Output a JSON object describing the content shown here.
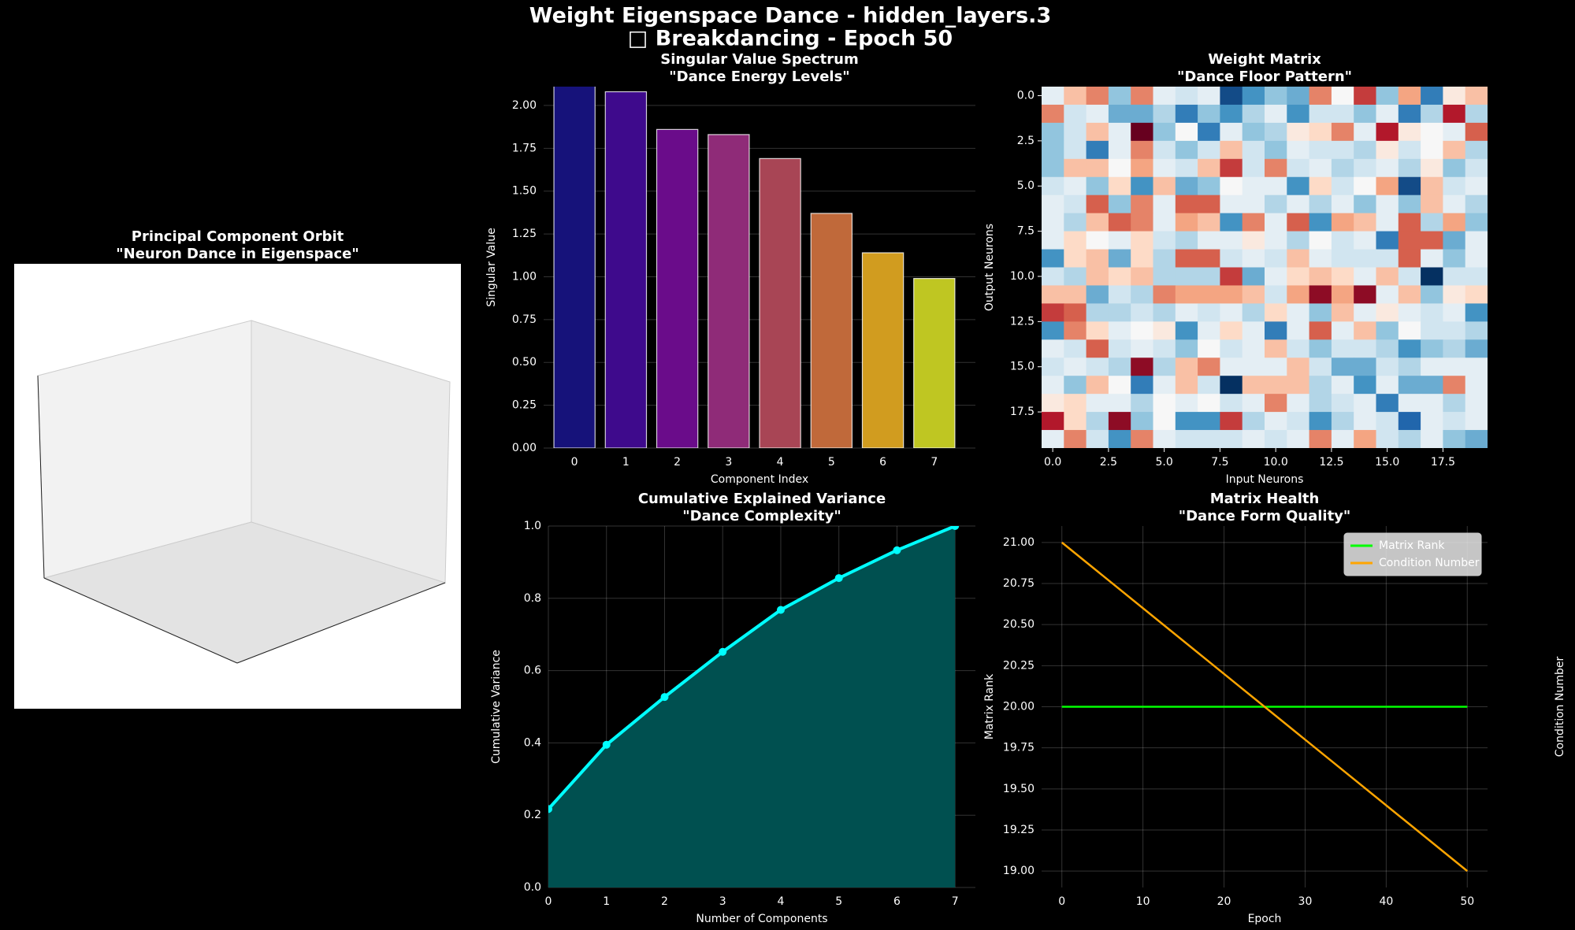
{
  "title": "Weight Eigenspace Dance - hidden_layers.3",
  "subtitle": "□ Breakdancing - Epoch 50",
  "chart_data": [
    {
      "type": "scatter3d",
      "title": "Principal Component Orbit",
      "subtitle": "\"Neuron Dance in Eigenspace\""
    },
    {
      "type": "bar",
      "title": "Singular Value Spectrum",
      "subtitle": "\"Dance Energy Levels\"",
      "xlabel": "Component Index",
      "ylabel": "Singular Value",
      "categories": [
        "0",
        "1",
        "2",
        "3",
        "4",
        "5",
        "6",
        "7"
      ],
      "values": [
        2.2,
        2.08,
        1.86,
        1.83,
        1.69,
        1.37,
        1.14,
        0.99
      ],
      "colors": [
        "#16127a",
        "#3e0a8c",
        "#6a0c8a",
        "#8f2b78",
        "#a84555",
        "#c0693a",
        "#d19c1f",
        "#bfc622"
      ],
      "xlim": [
        -0.6,
        7.8
      ],
      "ylim": [
        0,
        2.11
      ],
      "yticks": [
        {
          "value": 0,
          "label": "0.00"
        },
        {
          "value": 0.25,
          "label": "0.25"
        },
        {
          "value": 0.5,
          "label": "0.50"
        },
        {
          "value": 0.75,
          "label": "0.75"
        },
        {
          "value": 1,
          "label": "1.00"
        },
        {
          "value": 1.25,
          "label": "1.25"
        },
        {
          "value": 1.5,
          "label": "1.50"
        },
        {
          "value": 1.75,
          "label": "1.75"
        },
        {
          "value": 2,
          "label": "2.00"
        }
      ],
      "grid": true
    },
    {
      "type": "heatmap",
      "title": "Weight Matrix",
      "subtitle": "\"Dance Floor Pattern\"",
      "xlabel": "Input Neurons",
      "ylabel": "Output Neurons",
      "xlim": [
        -0.5,
        19.5
      ],
      "ylim": [
        19.5,
        -0.5
      ],
      "xticks": [
        {
          "value": 0,
          "label": "0.0"
        },
        {
          "value": 2.5,
          "label": "2.5"
        },
        {
          "value": 5,
          "label": "5.0"
        },
        {
          "value": 7.5,
          "label": "7.5"
        },
        {
          "value": 10,
          "label": "10.0"
        },
        {
          "value": 12.5,
          "label": "12.5"
        },
        {
          "value": 15,
          "label": "15.0"
        },
        {
          "value": 17.5,
          "label": "17.5"
        }
      ],
      "yticks": [
        {
          "value": 0,
          "label": "0.0"
        },
        {
          "value": 2.5,
          "label": "2.5"
        },
        {
          "value": 5,
          "label": "5.0"
        },
        {
          "value": 7.5,
          "label": "7.5"
        },
        {
          "value": 10,
          "label": "10.0"
        },
        {
          "value": 12.5,
          "label": "12.5"
        },
        {
          "value": 15,
          "label": "15.0"
        },
        {
          "value": 17.5,
          "label": "17.5"
        }
      ],
      "z": [
        [
          0.1,
          -0.3,
          -0.5,
          0.4,
          -0.5,
          0.1,
          0.2,
          0.1,
          0.9,
          0.6,
          0.4,
          0.5,
          -0.5,
          0.0,
          -0.7,
          0.4,
          -0.4,
          0.7,
          -0.1,
          -0.3
        ],
        [
          -0.5,
          0.2,
          0.1,
          0.5,
          0.5,
          0.3,
          0.7,
          0.4,
          0.6,
          0.3,
          0.1,
          0.6,
          0.2,
          0.2,
          0.4,
          0.1,
          0.7,
          0.3,
          -0.8,
          0.3
        ],
        [
          0.4,
          0.2,
          -0.3,
          0.1,
          -1.0,
          0.4,
          0.0,
          0.7,
          0.1,
          0.4,
          0.3,
          -0.1,
          -0.2,
          -0.5,
          0.1,
          -0.8,
          -0.1,
          0.0,
          0.1,
          -0.6
        ],
        [
          0.4,
          0.2,
          0.7,
          0.1,
          -0.5,
          0.2,
          0.4,
          0.2,
          -0.3,
          0.2,
          0.4,
          0.1,
          0.2,
          0.2,
          0.3,
          -0.1,
          0.2,
          0.0,
          -0.3,
          0.3
        ],
        [
          0.4,
          -0.3,
          -0.3,
          0.0,
          -0.4,
          0.1,
          0.2,
          -0.3,
          -0.7,
          0.2,
          -0.5,
          0.2,
          0.1,
          0.3,
          0.2,
          0.1,
          0.3,
          -0.1,
          0.4,
          0.2
        ],
        [
          0.2,
          0.1,
          0.4,
          -0.2,
          0.6,
          -0.3,
          0.5,
          0.4,
          0.0,
          0.1,
          0.1,
          0.6,
          -0.2,
          0.2,
          0.0,
          -0.4,
          0.9,
          -0.3,
          0.2,
          0.1
        ],
        [
          0.1,
          0.2,
          -0.6,
          0.4,
          -0.5,
          0.1,
          -0.6,
          -0.6,
          0.1,
          0.1,
          0.3,
          0.1,
          0.3,
          0.1,
          0.4,
          0.1,
          0.4,
          -0.3,
          0.1,
          0.3
        ],
        [
          0.1,
          0.3,
          -0.3,
          -0.6,
          -0.5,
          0.1,
          -0.4,
          -0.3,
          0.6,
          -0.5,
          0.1,
          -0.6,
          0.6,
          -0.4,
          -0.3,
          0.1,
          -0.6,
          0.3,
          -0.4,
          0.4
        ],
        [
          0.1,
          -0.2,
          0.0,
          0.1,
          -0.2,
          0.2,
          0.3,
          0.1,
          0.1,
          -0.1,
          0.1,
          0.3,
          0.0,
          0.2,
          0.1,
          0.7,
          -0.6,
          -0.6,
          0.5,
          0.1
        ],
        [
          0.6,
          -0.2,
          -0.3,
          0.5,
          -0.2,
          0.3,
          -0.6,
          -0.6,
          0.2,
          0.1,
          0.2,
          -0.3,
          0.1,
          0.2,
          0.2,
          0.2,
          -0.6,
          0.1,
          0.4,
          0.1
        ],
        [
          0.2,
          0.3,
          -0.3,
          -0.2,
          -0.3,
          0.3,
          0.3,
          0.3,
          -0.7,
          0.5,
          0.1,
          -0.2,
          -0.3,
          -0.2,
          0.1,
          -0.3,
          0.2,
          1.0,
          0.2,
          0.2
        ],
        [
          -0.3,
          -0.3,
          0.5,
          0.2,
          0.3,
          -0.5,
          -0.4,
          -0.4,
          -0.4,
          -0.3,
          0.2,
          -0.4,
          -0.9,
          -0.4,
          -0.9,
          0.1,
          -0.3,
          0.4,
          -0.1,
          -0.2
        ],
        [
          -0.7,
          -0.6,
          0.3,
          0.3,
          0.2,
          0.3,
          0.1,
          0.2,
          0.1,
          0.3,
          -0.2,
          0.1,
          0.4,
          -0.3,
          0.1,
          -0.1,
          0.1,
          0.2,
          0.1,
          0.6
        ],
        [
          0.6,
          -0.5,
          -0.2,
          0.1,
          0.0,
          -0.1,
          0.6,
          0.1,
          -0.2,
          0.1,
          0.7,
          0.1,
          -0.6,
          0.1,
          -0.3,
          0.4,
          0.0,
          0.2,
          0.2,
          0.3
        ],
        [
          0.1,
          0.2,
          -0.6,
          0.2,
          0.1,
          0.2,
          0.4,
          0.0,
          0.2,
          0.1,
          -0.3,
          0.2,
          0.4,
          0.2,
          0.2,
          0.3,
          0.6,
          0.4,
          0.3,
          0.5
        ],
        [
          0.2,
          0.1,
          0.2,
          0.3,
          -0.9,
          0.3,
          -0.3,
          -0.5,
          0.1,
          0.1,
          0.1,
          -0.3,
          0.2,
          0.5,
          0.5,
          0.2,
          0.3,
          0.1,
          0.1,
          0.1
        ],
        [
          0.1,
          0.4,
          -0.3,
          0.0,
          0.7,
          0.1,
          -0.3,
          0.2,
          1.0,
          -0.3,
          -0.3,
          -0.3,
          0.3,
          0.1,
          0.6,
          0.1,
          0.5,
          0.5,
          -0.5,
          0.1
        ],
        [
          -0.1,
          -0.2,
          0.1,
          0.1,
          0.3,
          0.0,
          0.1,
          0.0,
          0.2,
          0.1,
          -0.5,
          0.1,
          0.3,
          0.2,
          0.1,
          0.7,
          0.1,
          0.1,
          0.3,
          0.1
        ],
        [
          -0.8,
          -0.2,
          0.3,
          -0.9,
          0.4,
          0.0,
          0.6,
          0.6,
          -0.7,
          0.3,
          0.1,
          0.2,
          0.6,
          0.3,
          0.1,
          0.2,
          0.8,
          0.1,
          0.2,
          0.1
        ],
        [
          0.1,
          -0.5,
          0.2,
          0.6,
          -0.5,
          0.1,
          0.2,
          0.2,
          0.2,
          0.1,
          0.2,
          0.1,
          -0.5,
          0.1,
          -0.4,
          0.2,
          0.3,
          0.1,
          0.4,
          0.5
        ]
      ]
    },
    {
      "type": "line",
      "title": "Cumulative Explained Variance",
      "subtitle": "\"Dance Complexity\"",
      "xlabel": "Number of Components",
      "ylabel": "Cumulative Variance",
      "x": [
        0,
        1,
        2,
        3,
        4,
        5,
        6,
        7
      ],
      "values": [
        0.217,
        0.395,
        0.527,
        0.652,
        0.768,
        0.856,
        0.933,
        1.0
      ],
      "color": "#00ffff",
      "area_color": "#005050",
      "xlim": [
        0,
        7.35
      ],
      "ylim": [
        0,
        1.0
      ],
      "xticks": [
        0,
        1,
        2,
        3,
        4,
        5,
        6,
        7
      ],
      "yticks": [
        {
          "value": 0,
          "label": "0.0"
        },
        0.2,
        0.4,
        0.6,
        0.8,
        {
          "value": 1,
          "label": "1.0"
        }
      ],
      "grid": true
    },
    {
      "type": "line",
      "title": "Matrix Health",
      "subtitle": "\"Dance Form Quality\"",
      "xlabel": "Epoch",
      "ylabel": "Matrix Rank",
      "y2label": "Condition Number",
      "x": [
        0,
        50
      ],
      "series": [
        {
          "name": "Matrix Rank",
          "color": "#00ff00",
          "values": [
            20,
            20
          ]
        },
        {
          "name": "Condition Number",
          "color": "#ffa500",
          "values": [
            21,
            19
          ],
          "axis": "y2"
        }
      ],
      "xlim": [
        -2.5,
        52.5
      ],
      "ylim": [
        18.9,
        21.1
      ],
      "y2lim": [
        18.9,
        21.1
      ],
      "xticks": [
        0,
        10,
        20,
        30,
        40,
        50
      ],
      "yticks": [
        {
          "value": 19,
          "label": "19.00"
        },
        {
          "value": 19.25,
          "label": "19.25"
        },
        {
          "value": 19.5,
          "label": "19.50"
        },
        {
          "value": 19.75,
          "label": "19.75"
        },
        {
          "value": 20,
          "label": "20.00"
        },
        {
          "value": 20.25,
          "label": "20.25"
        },
        {
          "value": 20.5,
          "label": "20.50"
        },
        {
          "value": 20.75,
          "label": "20.75"
        },
        {
          "value": 21,
          "label": "21.00"
        }
      ],
      "grid": true,
      "legend": "upper right"
    }
  ]
}
